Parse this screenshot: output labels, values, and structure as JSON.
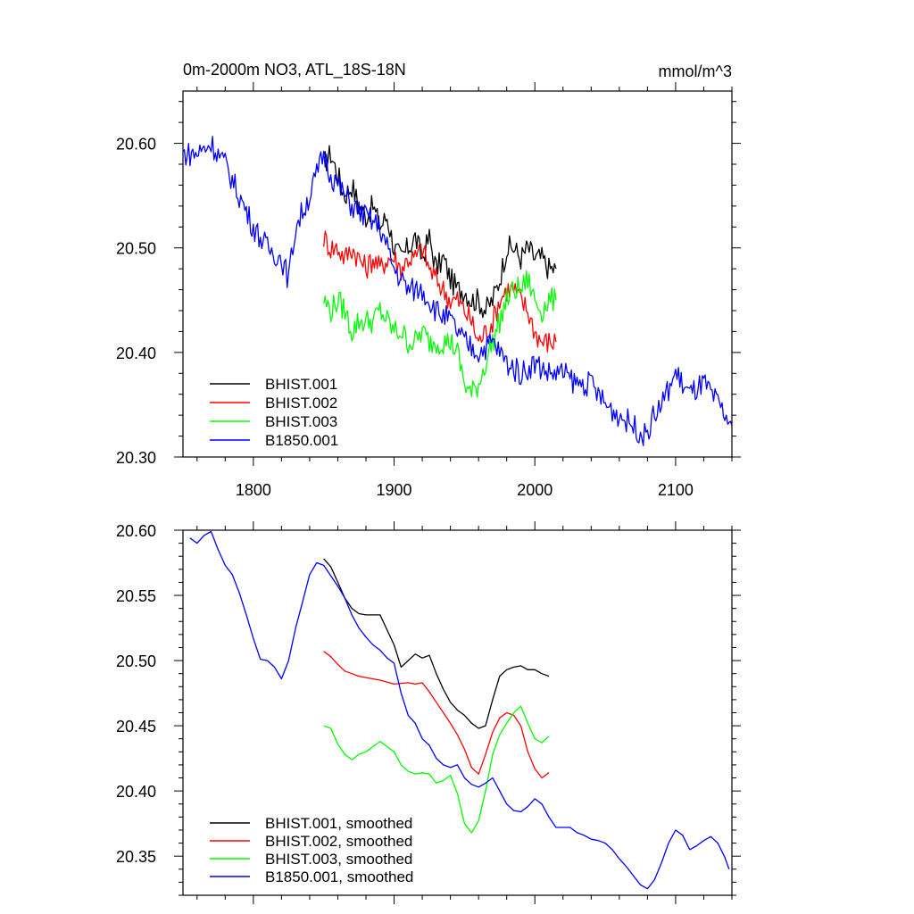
{
  "chart_data": [
    {
      "type": "line",
      "title": "0m-2000m NO3, ATL_18S-18N",
      "units": "mmol/m^3",
      "xlim": [
        1750,
        2140
      ],
      "ylim": [
        20.3,
        20.65
      ],
      "x_ticks": [
        1800,
        1900,
        2000,
        2100
      ],
      "x_tick_labels": [
        "1800",
        "1900",
        "2000",
        "2100"
      ],
      "y_ticks": [
        20.3,
        20.4,
        20.5,
        20.6
      ],
      "y_tick_labels": [
        "20.30",
        "20.40",
        "20.50",
        "20.60"
      ],
      "legend_position": "bottom-left",
      "grid": false,
      "series": [
        {
          "name": "BHIST.001",
          "color": "#000000",
          "x": [
            1850,
            1855,
            1860,
            1865,
            1870,
            1875,
            1880,
            1885,
            1890,
            1895,
            1900,
            1905,
            1910,
            1915,
            1920,
            1925,
            1930,
            1935,
            1940,
            1945,
            1950,
            1955,
            1960,
            1965,
            1970,
            1975,
            1980,
            1985,
            1990,
            1995,
            2000,
            2005,
            2010,
            2015
          ],
          "values": [
            20.58,
            20.59,
            20.57,
            20.55,
            20.56,
            20.54,
            20.53,
            20.54,
            20.52,
            20.53,
            20.5,
            20.49,
            20.5,
            20.51,
            20.49,
            20.51,
            20.48,
            20.49,
            20.47,
            20.46,
            20.46,
            20.45,
            20.45,
            20.44,
            20.45,
            20.47,
            20.5,
            20.5,
            20.49,
            20.5,
            20.49,
            20.49,
            20.48,
            20.48
          ]
        },
        {
          "name": "BHIST.002",
          "color": "#ff0000",
          "x": [
            1850,
            1855,
            1860,
            1865,
            1870,
            1875,
            1880,
            1885,
            1890,
            1895,
            1900,
            1905,
            1910,
            1915,
            1920,
            1925,
            1930,
            1935,
            1940,
            1945,
            1950,
            1955,
            1960,
            1965,
            1970,
            1975,
            1980,
            1985,
            1990,
            1995,
            2000,
            2005,
            2010,
            2015
          ],
          "values": [
            20.51,
            20.5,
            20.5,
            20.49,
            20.5,
            20.49,
            20.48,
            20.49,
            20.48,
            20.49,
            20.49,
            20.48,
            20.49,
            20.49,
            20.5,
            20.48,
            20.47,
            20.46,
            20.45,
            20.45,
            20.44,
            20.43,
            20.41,
            20.42,
            20.43,
            20.45,
            20.46,
            20.46,
            20.45,
            20.44,
            20.42,
            20.41,
            20.41,
            20.41
          ]
        },
        {
          "name": "BHIST.003",
          "color": "#00ff00",
          "x": [
            1850,
            1855,
            1860,
            1865,
            1870,
            1875,
            1880,
            1885,
            1890,
            1895,
            1900,
            1905,
            1910,
            1915,
            1920,
            1925,
            1930,
            1935,
            1940,
            1945,
            1950,
            1955,
            1960,
            1965,
            1970,
            1975,
            1980,
            1985,
            1990,
            1995,
            2000,
            2005,
            2010,
            2015
          ],
          "values": [
            20.45,
            20.44,
            20.45,
            20.44,
            20.42,
            20.43,
            20.43,
            20.43,
            20.44,
            20.43,
            20.42,
            20.42,
            20.41,
            20.41,
            20.42,
            20.41,
            20.41,
            20.41,
            20.41,
            20.4,
            20.37,
            20.36,
            20.37,
            20.39,
            20.41,
            20.43,
            20.45,
            20.46,
            20.46,
            20.47,
            20.45,
            20.44,
            20.45,
            20.45
          ]
        },
        {
          "name": "B1850.001",
          "color": "#0000ff",
          "x": [
            1750,
            1760,
            1770,
            1780,
            1790,
            1800,
            1810,
            1820,
            1825,
            1830,
            1840,
            1850,
            1855,
            1860,
            1870,
            1880,
            1890,
            1900,
            1910,
            1920,
            1930,
            1940,
            1950,
            1960,
            1970,
            1980,
            1990,
            2000,
            2010,
            2020,
            2030,
            2040,
            2050,
            2060,
            2070,
            2078,
            2085,
            2090,
            2100,
            2110,
            2120,
            2130,
            2140
          ],
          "values": [
            20.59,
            20.59,
            20.6,
            20.58,
            20.55,
            20.52,
            20.5,
            20.49,
            20.47,
            20.52,
            20.55,
            20.59,
            20.57,
            20.56,
            20.54,
            20.53,
            20.52,
            20.48,
            20.46,
            20.46,
            20.44,
            20.43,
            20.41,
            20.4,
            20.41,
            20.39,
            20.38,
            20.39,
            20.38,
            20.38,
            20.37,
            20.37,
            20.35,
            20.34,
            20.33,
            20.32,
            20.34,
            20.35,
            20.38,
            20.36,
            20.37,
            20.35,
            20.33
          ]
        }
      ]
    },
    {
      "type": "line",
      "xlim": [
        1750,
        2140
      ],
      "ylim": [
        20.32,
        20.6
      ],
      "x_ticks": [
        1800,
        1900,
        2000,
        2100
      ],
      "y_ticks": [
        20.35,
        20.4,
        20.45,
        20.5,
        20.55,
        20.6
      ],
      "y_tick_labels": [
        "20.35",
        "20.40",
        "20.45",
        "20.50",
        "20.55",
        "20.60"
      ],
      "legend_position": "bottom-left",
      "grid": false,
      "series": [
        {
          "name": "BHIST.001, smoothed",
          "color": "#000000",
          "x": [
            1850,
            1855,
            1860,
            1865,
            1870,
            1875,
            1880,
            1890,
            1900,
            1905,
            1910,
            1915,
            1920,
            1925,
            1930,
            1935,
            1940,
            1945,
            1950,
            1955,
            1960,
            1965,
            1970,
            1975,
            1980,
            1985,
            1990,
            1995,
            2000,
            2005,
            2010
          ],
          "values": [
            20.578,
            20.572,
            20.56,
            20.548,
            20.54,
            20.536,
            20.535,
            20.535,
            20.512,
            20.495,
            20.5,
            20.505,
            20.502,
            20.504,
            20.49,
            20.478,
            20.468,
            20.462,
            20.458,
            20.452,
            20.448,
            20.45,
            20.47,
            20.488,
            20.493,
            20.495,
            20.496,
            20.493,
            20.493,
            20.49,
            20.488
          ]
        },
        {
          "name": "BHIST.002, smoothed",
          "color": "#ff0000",
          "x": [
            1850,
            1855,
            1860,
            1865,
            1870,
            1875,
            1880,
            1890,
            1900,
            1910,
            1915,
            1920,
            1925,
            1930,
            1935,
            1940,
            1945,
            1950,
            1955,
            1960,
            1965,
            1970,
            1975,
            1980,
            1985,
            1990,
            1995,
            2000,
            2005,
            2010
          ],
          "values": [
            20.507,
            20.503,
            20.497,
            20.492,
            20.49,
            20.488,
            20.487,
            20.485,
            20.482,
            20.483,
            20.482,
            20.483,
            20.476,
            20.468,
            20.46,
            20.452,
            20.443,
            20.432,
            20.418,
            20.413,
            20.428,
            20.445,
            20.456,
            20.46,
            20.458,
            20.45,
            20.43,
            20.417,
            20.41,
            20.414
          ]
        },
        {
          "name": "BHIST.003, smoothed",
          "color": "#00ff00",
          "x": [
            1850,
            1855,
            1860,
            1865,
            1870,
            1875,
            1880,
            1890,
            1900,
            1905,
            1910,
            1915,
            1920,
            1925,
            1930,
            1935,
            1940,
            1945,
            1950,
            1955,
            1960,
            1965,
            1970,
            1975,
            1980,
            1985,
            1990,
            1995,
            2000,
            2005,
            2010
          ],
          "values": [
            20.45,
            20.448,
            20.436,
            20.428,
            20.424,
            20.428,
            20.43,
            20.438,
            20.43,
            20.42,
            20.415,
            20.413,
            20.414,
            20.413,
            20.406,
            20.408,
            20.412,
            20.398,
            20.375,
            20.368,
            20.377,
            20.4,
            20.428,
            20.443,
            20.452,
            20.46,
            20.465,
            20.452,
            20.44,
            20.437,
            20.442
          ]
        },
        {
          "name": "B1850.001, smoothed",
          "color": "#0000ff",
          "x": [
            1755,
            1760,
            1765,
            1770,
            1775,
            1780,
            1785,
            1790,
            1795,
            1800,
            1805,
            1810,
            1815,
            1820,
            1825,
            1830,
            1835,
            1840,
            1845,
            1850,
            1855,
            1860,
            1865,
            1870,
            1875,
            1880,
            1885,
            1890,
            1895,
            1900,
            1905,
            1910,
            1915,
            1920,
            1925,
            1930,
            1935,
            1940,
            1945,
            1950,
            1955,
            1960,
            1965,
            1970,
            1975,
            1980,
            1985,
            1990,
            1995,
            2000,
            2005,
            2010,
            2015,
            2020,
            2025,
            2030,
            2035,
            2040,
            2045,
            2050,
            2055,
            2060,
            2065,
            2070,
            2075,
            2080,
            2085,
            2090,
            2095,
            2100,
            2105,
            2110,
            2115,
            2120,
            2125,
            2130,
            2135,
            2138
          ],
          "values": [
            20.594,
            20.59,
            20.596,
            20.599,
            20.585,
            20.573,
            20.566,
            20.552,
            20.535,
            20.517,
            20.501,
            20.5,
            20.495,
            20.486,
            20.5,
            20.525,
            20.545,
            20.566,
            20.575,
            20.573,
            20.565,
            20.557,
            20.548,
            20.535,
            20.525,
            20.518,
            20.512,
            20.508,
            20.502,
            20.498,
            20.475,
            20.458,
            20.452,
            20.44,
            20.435,
            20.425,
            20.42,
            20.418,
            20.42,
            20.41,
            20.405,
            20.403,
            20.406,
            20.41,
            20.4,
            20.39,
            20.385,
            20.384,
            20.388,
            20.394,
            20.39,
            20.38,
            20.372,
            20.372,
            20.372,
            20.368,
            20.366,
            20.363,
            20.362,
            20.36,
            20.355,
            20.348,
            20.342,
            20.335,
            20.328,
            20.325,
            20.332,
            20.345,
            20.36,
            20.37,
            20.366,
            20.355,
            20.358,
            20.362,
            20.365,
            20.36,
            20.349,
            20.34
          ]
        }
      ]
    }
  ]
}
